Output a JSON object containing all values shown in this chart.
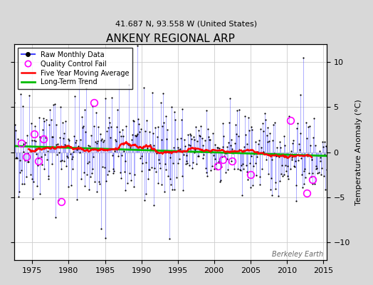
{
  "title": "ANKENY REGIONAL ARP",
  "subtitle": "41.687 N, 93.558 W (United States)",
  "ylabel": "Temperature Anomaly (°C)",
  "watermark": "Berkeley Earth",
  "xlim": [
    1972.5,
    2015.5
  ],
  "ylim": [
    -12,
    12
  ],
  "yticks": [
    -10,
    -5,
    0,
    5,
    10
  ],
  "xticks": [
    1975,
    1980,
    1985,
    1990,
    1995,
    2000,
    2005,
    2010,
    2015
  ],
  "fig_bg_color": "#d8d8d8",
  "plot_bg_color": "#ffffff",
  "raw_line_color": "#4444ff",
  "raw_dot_color": "#000000",
  "moving_avg_color": "#ff0000",
  "trend_color": "#00bb00",
  "qc_fail_color": "#ff00ff",
  "seed": 42,
  "n_years": 44,
  "start_year": 1972
}
